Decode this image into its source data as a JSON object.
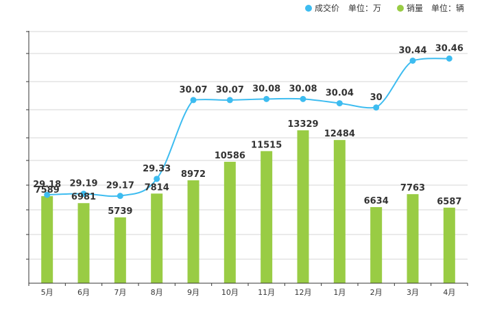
{
  "chart_data": {
    "type": "bar",
    "categories": [
      "5月",
      "6月",
      "7月",
      "8月",
      "9月",
      "10月",
      "11月",
      "12月",
      "1月",
      "2月",
      "3月",
      "4月"
    ],
    "series": [
      {
        "name": "成交价",
        "unit_label": "单位：万",
        "type": "line",
        "color": "#3dbcf0",
        "values": [
          29.18,
          29.19,
          29.17,
          29.33,
          30.07,
          30.07,
          30.08,
          30.08,
          30.04,
          30,
          30.44,
          30.46
        ],
        "labels": [
          "29.18",
          "29.19",
          "29.17",
          "29.33",
          "30.07",
          "30.07",
          "30.08",
          "30.08",
          "30.04",
          "30",
          "30.44",
          "30.46"
        ]
      },
      {
        "name": "销量",
        "unit_label": "单位：辆",
        "type": "bar",
        "color": "#99cc44",
        "values": [
          7589,
          6981,
          5739,
          7814,
          8972,
          10586,
          11515,
          13329,
          12484,
          6634,
          7763,
          6587
        ],
        "labels": [
          "7589",
          "6981",
          "5739",
          "7814",
          "8972",
          "10586",
          "11515",
          "13329",
          "12484",
          "6634",
          "7763",
          "6587"
        ]
      }
    ],
    "legend_position": "top-right",
    "grid": true
  }
}
